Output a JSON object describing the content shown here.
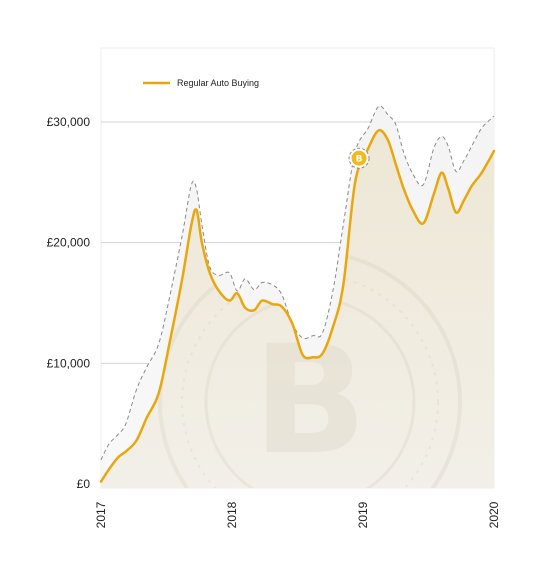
{
  "chart_data": {
    "type": "area",
    "title": "",
    "xlabel": "",
    "ylabel": "",
    "legend": {
      "placement": "top-left",
      "entries": [
        "Regular Auto Buying"
      ]
    },
    "x_ticks": [
      "2017",
      "2018",
      "2019",
      "2020"
    ],
    "y_ticks": [
      "£0",
      "£10,000",
      "£20,000",
      "£30,000"
    ],
    "y_tick_values": [
      0,
      10000,
      20000,
      30000
    ],
    "ylim": [
      0,
      35000
    ],
    "xlim": [
      2017.0,
      2020.0
    ],
    "grid": true,
    "colors": {
      "series": "#e8a70f",
      "envelope": "#8a8a8a",
      "fill": "#efe9d8",
      "grid": "#d4d4d4",
      "marker": "#f3b81c"
    },
    "series": [
      {
        "name": "Regular Auto Buying",
        "x": [
          2017.0,
          2017.06,
          2017.13,
          2017.19,
          2017.27,
          2017.35,
          2017.44,
          2017.52,
          2017.62,
          2017.69,
          2017.73,
          2017.77,
          2017.83,
          2017.9,
          2017.98,
          2018.04,
          2018.1,
          2018.17,
          2018.23,
          2018.31,
          2018.38,
          2018.46,
          2018.54,
          2018.62,
          2018.69,
          2018.77,
          2018.85,
          2018.94,
          2019.04,
          2019.12,
          2019.19,
          2019.25,
          2019.31,
          2019.38,
          2019.46,
          2019.54,
          2019.6,
          2019.65,
          2019.71,
          2019.77,
          2019.83,
          2019.9,
          2019.96,
          2020.0
        ],
        "values": [
          200,
          1200,
          2200,
          2700,
          3600,
          5500,
          7500,
          11500,
          17000,
          21500,
          22700,
          20000,
          17500,
          16000,
          15200,
          15800,
          14600,
          14400,
          15200,
          14900,
          14700,
          13300,
          10700,
          10500,
          10800,
          13000,
          16500,
          25000,
          27800,
          29300,
          28500,
          26500,
          24500,
          22700,
          21600,
          24000,
          25800,
          24500,
          22500,
          23500,
          24700,
          25700,
          26800,
          27600
        ]
      }
    ],
    "envelope": {
      "x": [
        2017.0,
        2017.06,
        2017.13,
        2017.19,
        2017.27,
        2017.35,
        2017.44,
        2017.52,
        2017.62,
        2017.69,
        2017.73,
        2017.77,
        2017.83,
        2017.9,
        2017.98,
        2018.04,
        2018.1,
        2018.17,
        2018.23,
        2018.31,
        2018.38,
        2018.46,
        2018.54,
        2018.62,
        2018.69,
        2018.77,
        2018.85,
        2018.94,
        2019.04,
        2019.12,
        2019.19,
        2019.25,
        2019.31,
        2019.38,
        2019.46,
        2019.54,
        2019.6,
        2019.65,
        2019.71,
        2019.77,
        2019.83,
        2019.9,
        2019.96,
        2020.0
      ],
      "values": [
        2000,
        3300,
        4100,
        5000,
        7800,
        9700,
        11600,
        15300,
        20600,
        24800,
        24400,
        21500,
        18000,
        17300,
        17500,
        16000,
        17000,
        16100,
        16700,
        16500,
        15700,
        13300,
        12100,
        12300,
        12500,
        16000,
        21500,
        27500,
        29500,
        31300,
        30600,
        29800,
        27500,
        25700,
        24800,
        27800,
        28800,
        28000,
        25900,
        26800,
        28000,
        29400,
        30100,
        30500
      ]
    },
    "annotations": [
      {
        "type": "marker",
        "icon": "bitcoin-icon",
        "glyph": "B",
        "x": 2018.97,
        "y": 27000
      }
    ]
  }
}
